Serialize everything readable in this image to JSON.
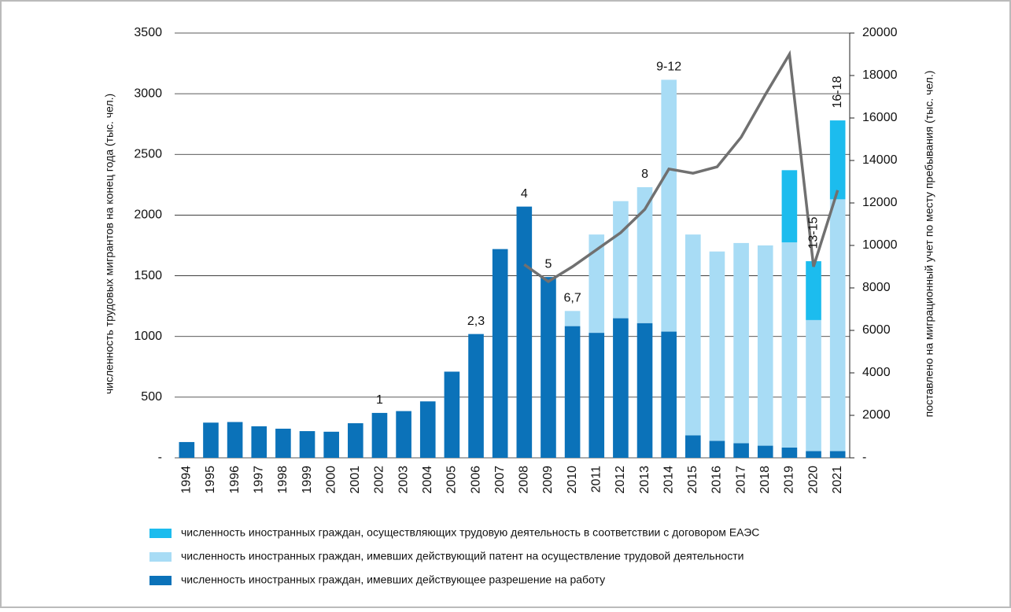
{
  "chart_data": {
    "type": "bar",
    "y_label": "численность трудовых мигрантов на конец года (тыс. чел.)",
    "y2_label": "поставлено на миграционный учет по месту пребывания (тыс. чел.)",
    "categories": [
      "1994",
      "1995",
      "1996",
      "1997",
      "1998",
      "1999",
      "2000",
      "2001",
      "2002",
      "2003",
      "2004",
      "2005",
      "2006",
      "2007",
      "2008",
      "2009",
      "2010",
      "2011",
      "2012",
      "2013",
      "2014",
      "2015",
      "2016",
      "2017",
      "2018",
      "2019",
      "2020",
      "2021"
    ],
    "series": [
      {
        "name": "численность иностранных граждан, осуществляющих трудовую деятельность в соответствии с договором ЕАЭС",
        "color": "#1cbcee",
        "values": [
          null,
          null,
          null,
          null,
          null,
          null,
          null,
          null,
          null,
          null,
          null,
          null,
          null,
          null,
          null,
          null,
          null,
          null,
          null,
          null,
          null,
          null,
          null,
          null,
          null,
          595,
          485,
          650
        ]
      },
      {
        "name": "численность иностранных граждан, имевших действующий патент на осуществление трудовой деятельности",
        "color": "#a8dcf5",
        "values": [
          null,
          null,
          null,
          null,
          null,
          null,
          null,
          null,
          null,
          null,
          null,
          null,
          null,
          null,
          null,
          null,
          125,
          810,
          965,
          1120,
          2075,
          1655,
          1560,
          1650,
          1650,
          1690,
          1080,
          2075
        ]
      },
      {
        "name": "численность иностранных граждан, имевших действующее разрешение на работу",
        "color": "#0b72b9",
        "values": [
          130,
          290,
          295,
          260,
          240,
          220,
          215,
          285,
          370,
          385,
          465,
          710,
          1020,
          1720,
          2070,
          1490,
          1085,
          1030,
          1150,
          1110,
          1040,
          185,
          140,
          120,
          100,
          85,
          55,
          55
        ]
      }
    ],
    "line": {
      "color": "#707070",
      "axis": "y2",
      "values": [
        null,
        null,
        null,
        null,
        null,
        null,
        null,
        null,
        null,
        null,
        null,
        null,
        null,
        null,
        9100,
        8300,
        9000,
        9800,
        10600,
        11700,
        13600,
        13400,
        13700,
        15100,
        17100,
        19000,
        9000,
        12600
      ]
    },
    "annotations": [
      {
        "text": "1",
        "category": "2002"
      },
      {
        "text": "2,3",
        "category": "2006"
      },
      {
        "text": "4",
        "category": "2008"
      },
      {
        "text": "5",
        "category": "2009"
      },
      {
        "text": "6,7",
        "category": "2010"
      },
      {
        "text": "8",
        "category": "2013"
      },
      {
        "text": "9-12",
        "category": "2014"
      },
      {
        "text": "13-15",
        "category": "2020",
        "vertical": true
      },
      {
        "text": "16-18",
        "category": "2021",
        "vertical": true
      }
    ],
    "ylim": [
      0,
      3500
    ],
    "yticks": [
      {
        "value": 0,
        "label": "-"
      },
      500,
      1000,
      1500,
      2000,
      2500,
      3000,
      3500
    ],
    "y2lim": [
      0,
      20000
    ],
    "y2ticks": [
      {
        "value": 0,
        "label": "-"
      },
      2000,
      4000,
      6000,
      8000,
      10000,
      12000,
      14000,
      16000,
      18000,
      20000
    ],
    "grid": true,
    "legend": "bottom"
  }
}
